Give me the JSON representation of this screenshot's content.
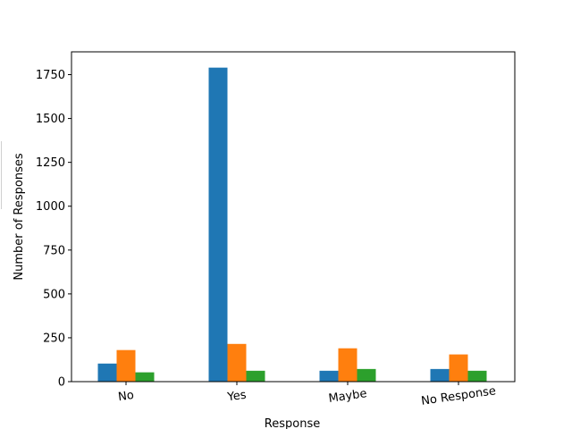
{
  "chart_data": {
    "type": "bar",
    "title": "",
    "xlabel": "Response",
    "ylabel": "Number of Responses",
    "categories": [
      "No",
      "Yes",
      "Maybe",
      "No Response"
    ],
    "series": [
      {
        "values": [
          103,
          1790,
          62,
          72
        ],
        "color": "#1f77b4"
      },
      {
        "values": [
          180,
          215,
          190,
          155
        ],
        "color": "#ff7f0e"
      },
      {
        "values": [
          53,
          62,
          72,
          62
        ],
        "color": "#2ca02c"
      }
    ],
    "ylim": [
      0,
      1880
    ],
    "yticks": [
      0,
      250,
      500,
      750,
      1000,
      1250,
      1500,
      1750
    ],
    "grid": false,
    "xtick_rotation": -8
  }
}
